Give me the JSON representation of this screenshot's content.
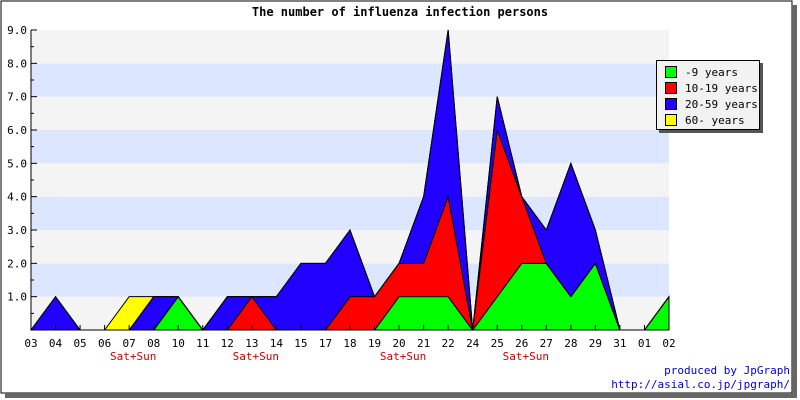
{
  "chart_data": {
    "type": "area",
    "title": "The number of influenza infection persons",
    "stacked": true,
    "categories": [
      "03",
      "04",
      "05",
      "06",
      "07",
      "08",
      "10",
      "11",
      "12",
      "13",
      "14",
      "15",
      "17",
      "18",
      "19",
      "20",
      "21",
      "22",
      "24",
      "25",
      "26",
      "27",
      "28",
      "29",
      "31",
      "01",
      "02"
    ],
    "weekend_labels": [
      {
        "category": "07",
        "text": "Sat+Sun"
      },
      {
        "category": "13",
        "text": "Sat+Sun"
      },
      {
        "category": "20",
        "text": "Sat+Sun"
      },
      {
        "category": "26",
        "text": "Sat+Sun"
      }
    ],
    "yticks": [
      "1.0",
      "2.0",
      "3.0",
      "4.0",
      "5.0",
      "6.0",
      "7.0",
      "8.0",
      "9.0"
    ],
    "ylim": [
      0,
      9
    ],
    "series": [
      {
        "name": "-9 years",
        "color": "#00ff00",
        "values": [
          0,
          0,
          0,
          0,
          0,
          0,
          1,
          0,
          0,
          0,
          0,
          0,
          0,
          0,
          0,
          1,
          1,
          1,
          0,
          1,
          2,
          2,
          1,
          2,
          0,
          0,
          1
        ]
      },
      {
        "name": "10-19 years",
        "color": "#ff0000",
        "values": [
          0,
          0,
          0,
          0,
          0,
          0,
          0,
          0,
          0,
          1,
          0,
          0,
          0,
          1,
          1,
          1,
          1,
          3,
          0,
          5,
          2,
          0,
          0,
          0,
          0,
          0,
          0
        ]
      },
      {
        "name": "20-59 years",
        "color": "#2200ff",
        "values": [
          0,
          1,
          0,
          0,
          0,
          1,
          0,
          0,
          1,
          0,
          1,
          2,
          2,
          2,
          0,
          0,
          2,
          5,
          0,
          1,
          0,
          1,
          4,
          1,
          0,
          0,
          0
        ]
      },
      {
        "name": "60- years",
        "color": "#ffff00",
        "values": [
          0,
          0,
          0,
          0,
          1,
          0,
          0,
          0,
          0,
          0,
          0,
          0,
          0,
          0,
          0,
          0,
          0,
          0,
          0,
          0,
          0,
          0,
          0,
          0,
          0,
          0,
          0
        ]
      }
    ],
    "legend_position": "top-right",
    "grid": true,
    "band_colors": [
      "#f4f4f4",
      "#dde6ff"
    ]
  },
  "credit": {
    "line1": "produced by JpGraph",
    "line2": "http://asial.co.jp/jpgraph/"
  }
}
